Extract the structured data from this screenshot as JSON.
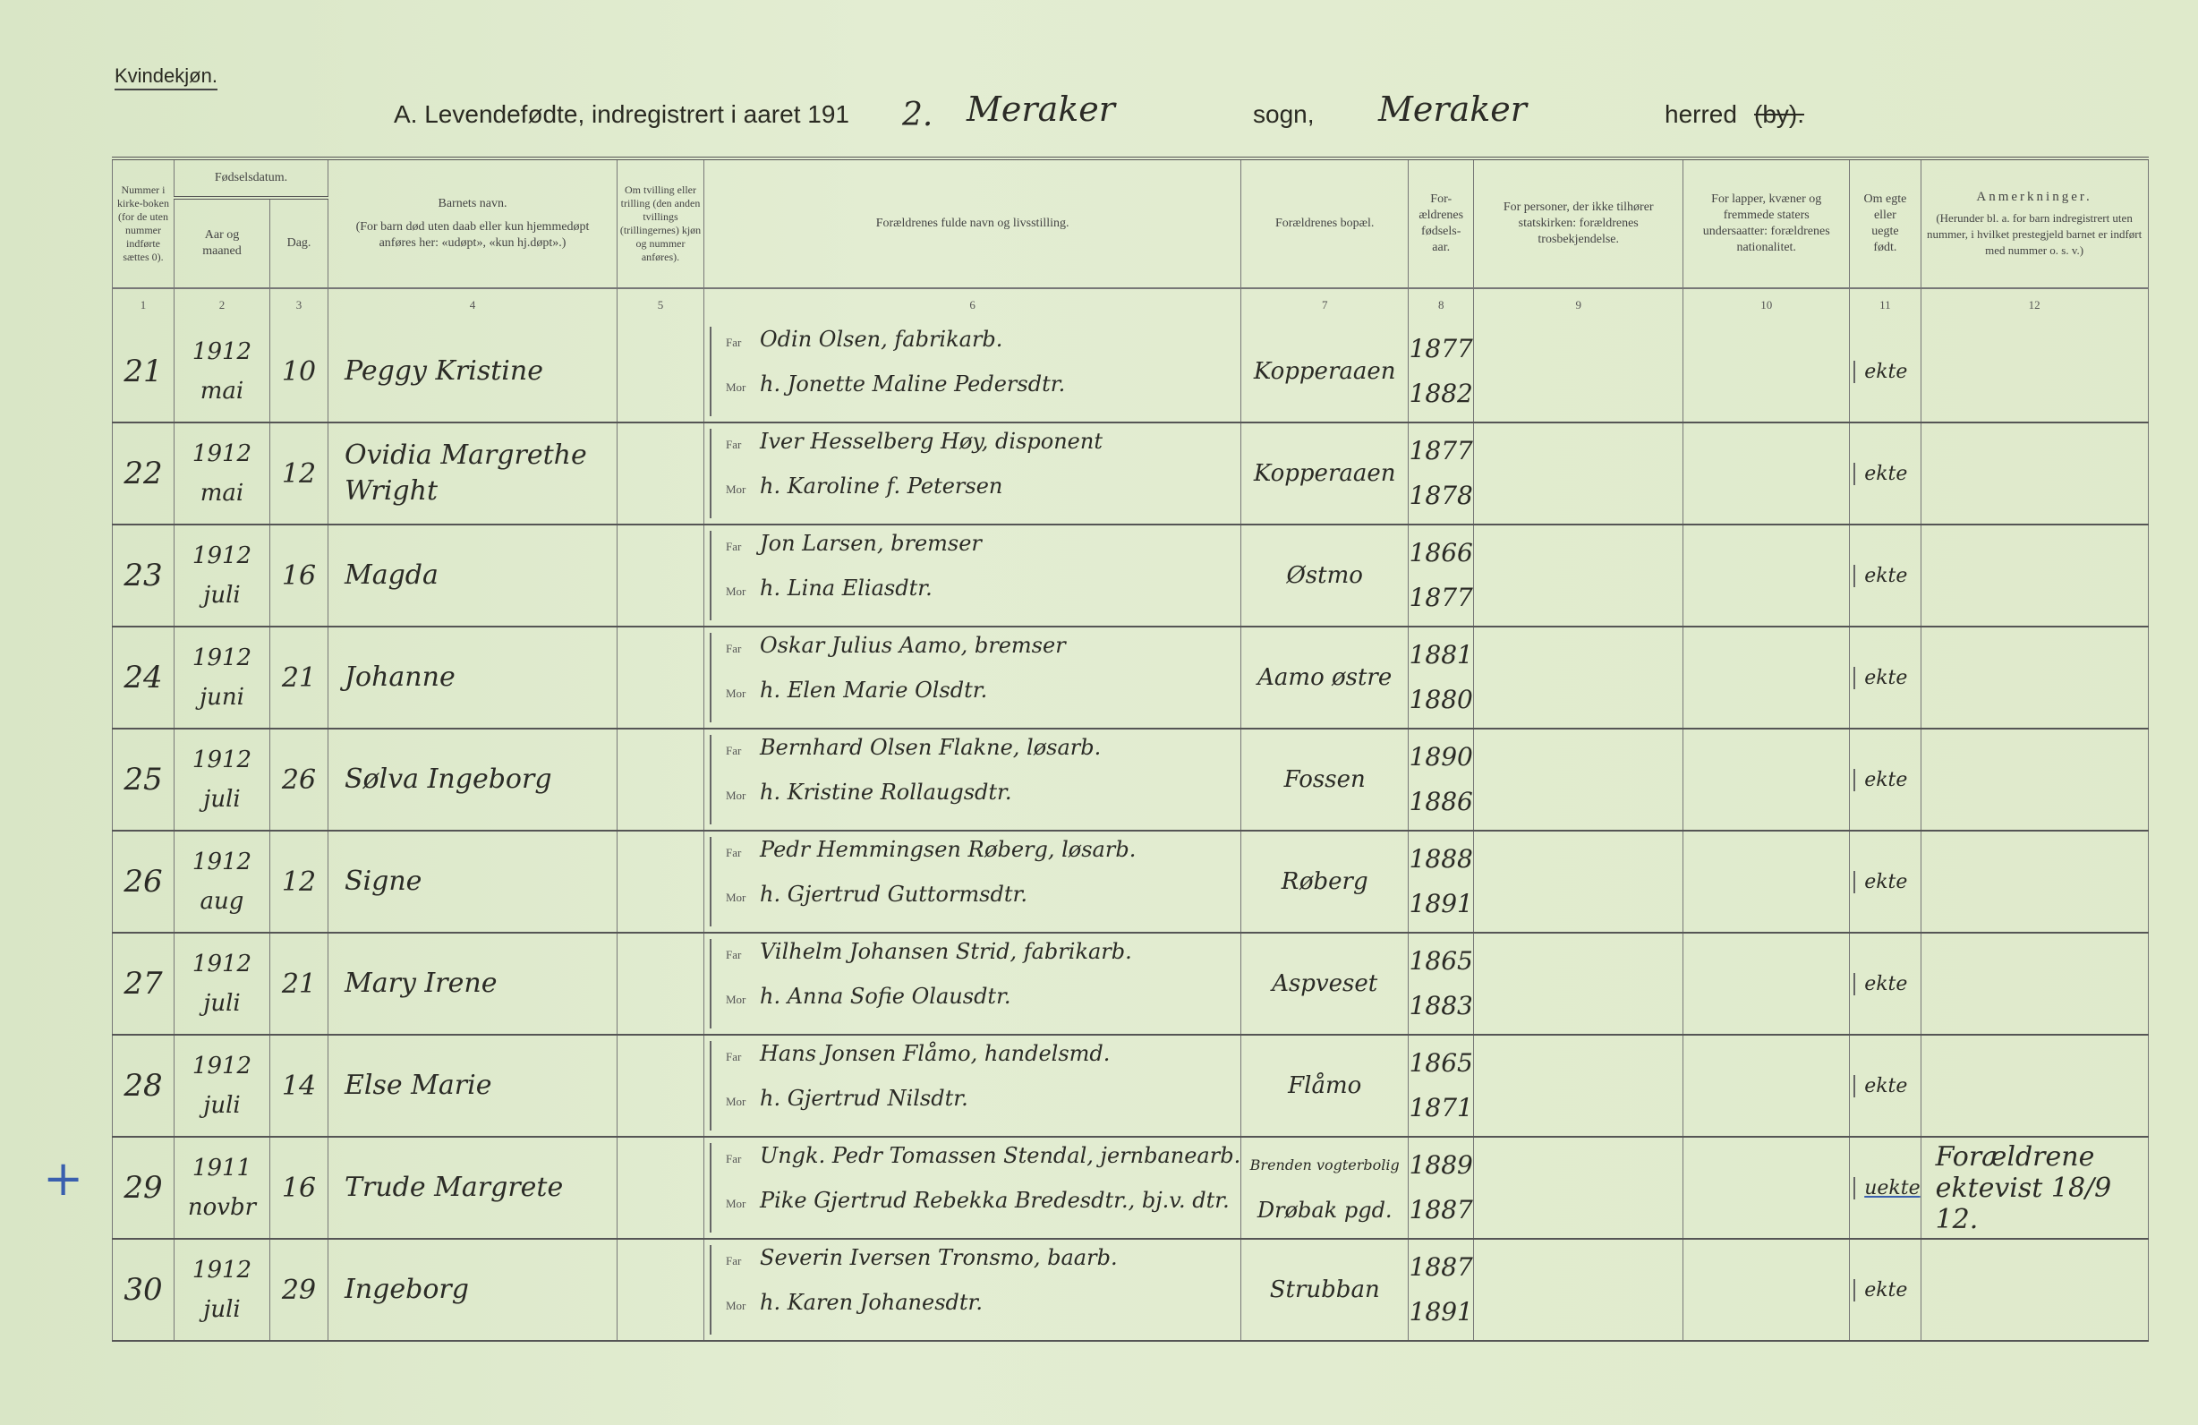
{
  "header": {
    "gender": "Kvindekjøn.",
    "title_prefix": "A.  Levendefødte, indregistrert i aaret 191",
    "year_digit": "2.",
    "parish_hw": "Meraker",
    "sogn_label": "sogn,",
    "municipality_hw": "Meraker",
    "herred_label": "herred",
    "by_struck": "(by)."
  },
  "columns": {
    "c1": "Nummer i kirke-boken (for de uten nummer indførte sættes 0).",
    "c2_group": "Fødselsdatum.",
    "c2": "Aar og maaned",
    "c3": "Dag.",
    "c4_title": "Barnets navn.",
    "c4_note": "(For barn død uten daab eller kun hjemmedøpt anføres her: «udøpt», «kun hj.døpt».)",
    "c5": "Om tvilling eller trilling (den anden tvillings (trillingernes) kjøn og nummer anføres).",
    "c6": "Forældrenes fulde navn og livsstilling.",
    "c7": "Forældrenes bopæl.",
    "c8": "For-ældrenes fødsels-aar.",
    "c9": "For personer, der ikke tilhører statskirken: forældrenes trosbekjendelse.",
    "c10": "For lapper, kvæner og fremmede staters undersaatter: forældrenes nationalitet.",
    "c11": "Om egte eller uegte født.",
    "c12_title": "Anmerkninger.",
    "c12_note": "(Herunder bl. a. for barn indregistrert uten nummer, i hvilket prestegjeld barnet er indført med nummer o. s. v.)",
    "numbers": [
      "1",
      "2",
      "3",
      "4",
      "5",
      "6",
      "7",
      "8",
      "9",
      "10",
      "11",
      "12"
    ]
  },
  "labels": {
    "far": "Far",
    "mor": "Mor"
  },
  "rows": [
    {
      "nr": "21",
      "year": "1912",
      "month": "mai",
      "day": "10",
      "child": "Peggy Kristine",
      "far": "Odin Olsen, fabrikarb.",
      "mor": "h. Jonette Maline Pedersdtr.",
      "residence": "Kopperaaen",
      "residence2": "",
      "far_year": "1877",
      "mor_year": "1882",
      "legit": "ekte",
      "note": ""
    },
    {
      "nr": "22",
      "year": "1912",
      "month": "mai",
      "day": "12",
      "child": "Ovidia Margrethe Wright",
      "far": "Iver Hesselberg Høy, disponent",
      "mor": "h. Karoline f. Petersen",
      "residence": "Kopperaaen",
      "residence2": "",
      "far_year": "1877",
      "mor_year": "1878",
      "legit": "ekte",
      "note": ""
    },
    {
      "nr": "23",
      "year": "1912",
      "month": "juli",
      "day": "16",
      "child": "Magda",
      "far": "Jon Larsen, bremser",
      "mor": "h. Lina Eliasdtr.",
      "residence": "Østmo",
      "residence2": "",
      "far_year": "1866",
      "mor_year": "1877",
      "legit": "ekte",
      "note": ""
    },
    {
      "nr": "24",
      "year": "1912",
      "month": "juni",
      "day": "21",
      "child": "Johanne",
      "far": "Oskar Julius Aamo, bremser",
      "mor": "h. Elen Marie Olsdtr.",
      "residence": "Aamo østre",
      "residence2": "",
      "far_year": "1881",
      "mor_year": "1880",
      "legit": "ekte",
      "note": ""
    },
    {
      "nr": "25",
      "year": "1912",
      "month": "juli",
      "day": "26",
      "child": "Sølva Ingeborg",
      "far": "Bernhard Olsen Flakne, løsarb.",
      "mor": "h. Kristine Rollaugsdtr.",
      "residence": "Fossen",
      "residence2": "",
      "far_year": "1890",
      "mor_year": "1886",
      "legit": "ekte",
      "note": ""
    },
    {
      "nr": "26",
      "year": "1912",
      "month": "aug",
      "day": "12",
      "child": "Signe",
      "far": "Pedr Hemmingsen Røberg, løsarb.",
      "mor": "h. Gjertrud Guttormsdtr.",
      "residence": "Røberg",
      "residence2": "",
      "far_year": "1888",
      "mor_year": "1891",
      "legit": "ekte",
      "note": ""
    },
    {
      "nr": "27",
      "year": "1912",
      "month": "juli",
      "day": "21",
      "child": "Mary Irene",
      "far": "Vilhelm Johansen Strid, fabrikarb.",
      "mor": "h. Anna Sofie Olausdtr.",
      "residence": "Aspveset",
      "residence2": "",
      "far_year": "1865",
      "mor_year": "1883",
      "legit": "ekte",
      "note": ""
    },
    {
      "nr": "28",
      "year": "1912",
      "month": "juli",
      "day": "14",
      "child": "Else Marie",
      "far": "Hans Jonsen Flåmo, handelsmd.",
      "mor": "h. Gjertrud Nilsdtr.",
      "residence": "Flåmo",
      "residence2": "",
      "far_year": "1865",
      "mor_year": "1871",
      "legit": "ekte",
      "note": ""
    },
    {
      "nr": "29",
      "year": "1911",
      "month": "novbr",
      "day": "16",
      "child": "Trude Margrete",
      "far": "Ungk. Pedr Tomassen Stendal, jernbanearb.",
      "mor": "Pike Gjertrud Rebekka Bredesdtr., bj.v. dtr.",
      "residence": "Brenden vogterbolig",
      "residence2": "Drøbak pgd.",
      "far_year": "1889",
      "mor_year": "1887",
      "legit": "uekte",
      "note": "Forældrene ektevist 18/9 12."
    },
    {
      "nr": "30",
      "year": "1912",
      "month": "juli",
      "day": "29",
      "child": "Ingeborg",
      "far": "Severin Iversen Tronsmo, baarb.",
      "mor": "h. Karen Johanesdtr.",
      "residence": "Strubban",
      "residence2": "",
      "far_year": "1887",
      "mor_year": "1891",
      "legit": "ekte",
      "note": ""
    }
  ],
  "margin_mark": "+"
}
